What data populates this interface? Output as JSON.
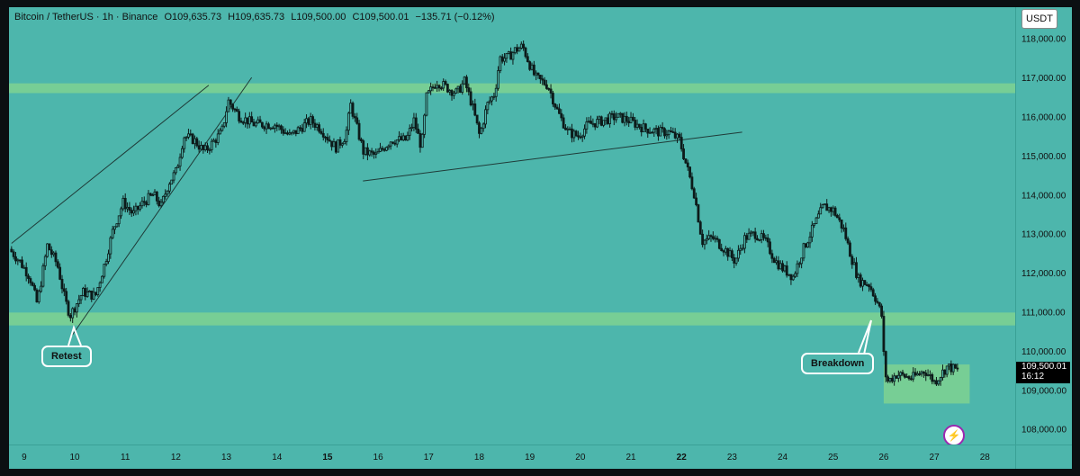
{
  "legend": {
    "symbol": "Bitcoin / TetherUS · 1h · Binance",
    "open": "O109,635.73",
    "high": "H109,635.73",
    "low": "L109,500.00",
    "close": "C109,500.01",
    "change": "−135.71 (−0.12%)"
  },
  "currency_label": "USDT",
  "last_price": {
    "value": "109,500.01",
    "countdown": "16:12"
  },
  "annotations": {
    "retest": "Retest",
    "breakdown": "Breakdown"
  },
  "colors": {
    "background": "#4db6ac",
    "candle": "#0d1b1a",
    "zone": "#86d68e",
    "line": "#1f3b38",
    "callout_border": "#ffffff"
  },
  "chart_data": {
    "type": "candlestick",
    "symbol": "BTCUSDT",
    "interval": "1h",
    "exchange": "Binance",
    "ylim": [
      107600,
      118800
    ],
    "y_ticks": [
      "108,000.00",
      "109,000.00",
      "110,000.00",
      "111,000.00",
      "112,000.00",
      "113,000.00",
      "114,000.00",
      "115,000.00",
      "116,000.00",
      "117,000.00",
      "118,000.00"
    ],
    "y_tick_values": [
      108000,
      109000,
      110000,
      111000,
      112000,
      113000,
      114000,
      115000,
      116000,
      117000,
      118000
    ],
    "x_range_days": [
      8.7,
      28.6
    ],
    "x_ticks": [
      "9",
      "10",
      "11",
      "12",
      "13",
      "14",
      "15",
      "16",
      "17",
      "18",
      "19",
      "20",
      "21",
      "22",
      "23",
      "24",
      "25",
      "26",
      "27",
      "28"
    ],
    "x_tick_days": [
      9,
      10,
      11,
      12,
      13,
      14,
      15,
      16,
      17,
      18,
      19,
      20,
      21,
      22,
      23,
      24,
      25,
      26,
      27,
      28
    ],
    "x_tick_bold": [
      false,
      false,
      false,
      false,
      false,
      false,
      true,
      false,
      false,
      false,
      false,
      false,
      false,
      true,
      false,
      false,
      false,
      false,
      false,
      false
    ],
    "price_path": [
      [
        8.75,
        112600
      ],
      [
        8.95,
        112300
      ],
      [
        9.15,
        111900
      ],
      [
        9.3,
        111200
      ],
      [
        9.5,
        112700
      ],
      [
        9.7,
        112200
      ],
      [
        9.85,
        111300
      ],
      [
        9.95,
        110900
      ],
      [
        10.2,
        111500
      ],
      [
        10.45,
        111400
      ],
      [
        10.65,
        112300
      ],
      [
        10.8,
        113100
      ],
      [
        11.0,
        113800
      ],
      [
        11.2,
        113500
      ],
      [
        11.4,
        113800
      ],
      [
        11.6,
        114000
      ],
      [
        11.75,
        113700
      ],
      [
        11.9,
        114300
      ],
      [
        12.05,
        114600
      ],
      [
        12.2,
        115500
      ],
      [
        12.4,
        115400
      ],
      [
        12.6,
        115100
      ],
      [
        12.75,
        115300
      ],
      [
        12.95,
        115600
      ],
      [
        13.08,
        116400
      ],
      [
        13.3,
        116000
      ],
      [
        13.6,
        115800
      ],
      [
        14.0,
        115800
      ],
      [
        14.3,
        115500
      ],
      [
        14.7,
        115900
      ],
      [
        14.9,
        115700
      ],
      [
        15.2,
        115200
      ],
      [
        15.4,
        115500
      ],
      [
        15.5,
        116300
      ],
      [
        15.75,
        115100
      ],
      [
        16.0,
        115000
      ],
      [
        16.3,
        115400
      ],
      [
        16.6,
        115400
      ],
      [
        16.75,
        115900
      ],
      [
        16.9,
        115200
      ],
      [
        17.0,
        116500
      ],
      [
        17.2,
        116900
      ],
      [
        17.45,
        116700
      ],
      [
        17.6,
        116600
      ],
      [
        17.75,
        116900
      ],
      [
        17.9,
        116300
      ],
      [
        18.05,
        115500
      ],
      [
        18.2,
        116300
      ],
      [
        18.35,
        116600
      ],
      [
        18.45,
        117500
      ],
      [
        18.6,
        117500
      ],
      [
        18.75,
        117700
      ],
      [
        18.9,
        117800
      ],
      [
        19.05,
        117300
      ],
      [
        19.15,
        117000
      ],
      [
        19.4,
        116800
      ],
      [
        19.6,
        116100
      ],
      [
        19.8,
        115600
      ],
      [
        20.0,
        115500
      ],
      [
        20.2,
        115800
      ],
      [
        20.5,
        115900
      ],
      [
        20.75,
        116000
      ],
      [
        21.0,
        115900
      ],
      [
        21.3,
        115700
      ],
      [
        21.6,
        115600
      ],
      [
        21.8,
        115600
      ],
      [
        22.0,
        115400
      ],
      [
        22.15,
        114700
      ],
      [
        22.3,
        114000
      ],
      [
        22.45,
        112800
      ],
      [
        22.65,
        112900
      ],
      [
        22.9,
        112600
      ],
      [
        23.1,
        112300
      ],
      [
        23.3,
        112900
      ],
      [
        23.5,
        113000
      ],
      [
        23.7,
        112800
      ],
      [
        23.9,
        112300
      ],
      [
        24.05,
        112100
      ],
      [
        24.25,
        111900
      ],
      [
        24.45,
        112600
      ],
      [
        24.7,
        113300
      ],
      [
        24.85,
        113700
      ],
      [
        25.05,
        113600
      ],
      [
        25.25,
        113100
      ],
      [
        25.4,
        112400
      ],
      [
        25.55,
        111800
      ],
      [
        25.75,
        111700
      ],
      [
        25.9,
        111300
      ],
      [
        26.0,
        110900
      ],
      [
        26.05,
        109700
      ],
      [
        26.1,
        109200
      ],
      [
        26.3,
        109400
      ],
      [
        26.6,
        109300
      ],
      [
        26.85,
        109500
      ],
      [
        27.05,
        109200
      ],
      [
        27.3,
        109600
      ],
      [
        27.5,
        109500
      ]
    ],
    "zones": [
      {
        "from_day": 8.7,
        "to_day": 28.6,
        "low": 116600,
        "high": 116850
      },
      {
        "from_day": 8.7,
        "to_day": 28.6,
        "low": 110650,
        "high": 110980
      },
      {
        "from_day": 26.0,
        "to_day": 27.7,
        "low": 108650,
        "high": 109650
      }
    ],
    "trendlines": [
      {
        "from": [
          8.75,
          112750
        ],
        "to": [
          12.65,
          116800
        ]
      },
      {
        "from": [
          9.95,
          110400
        ],
        "to": [
          13.5,
          117000
        ]
      },
      {
        "from": [
          15.7,
          114350
        ],
        "to": [
          23.2,
          115600
        ]
      }
    ],
    "last_value": 109500.01
  }
}
